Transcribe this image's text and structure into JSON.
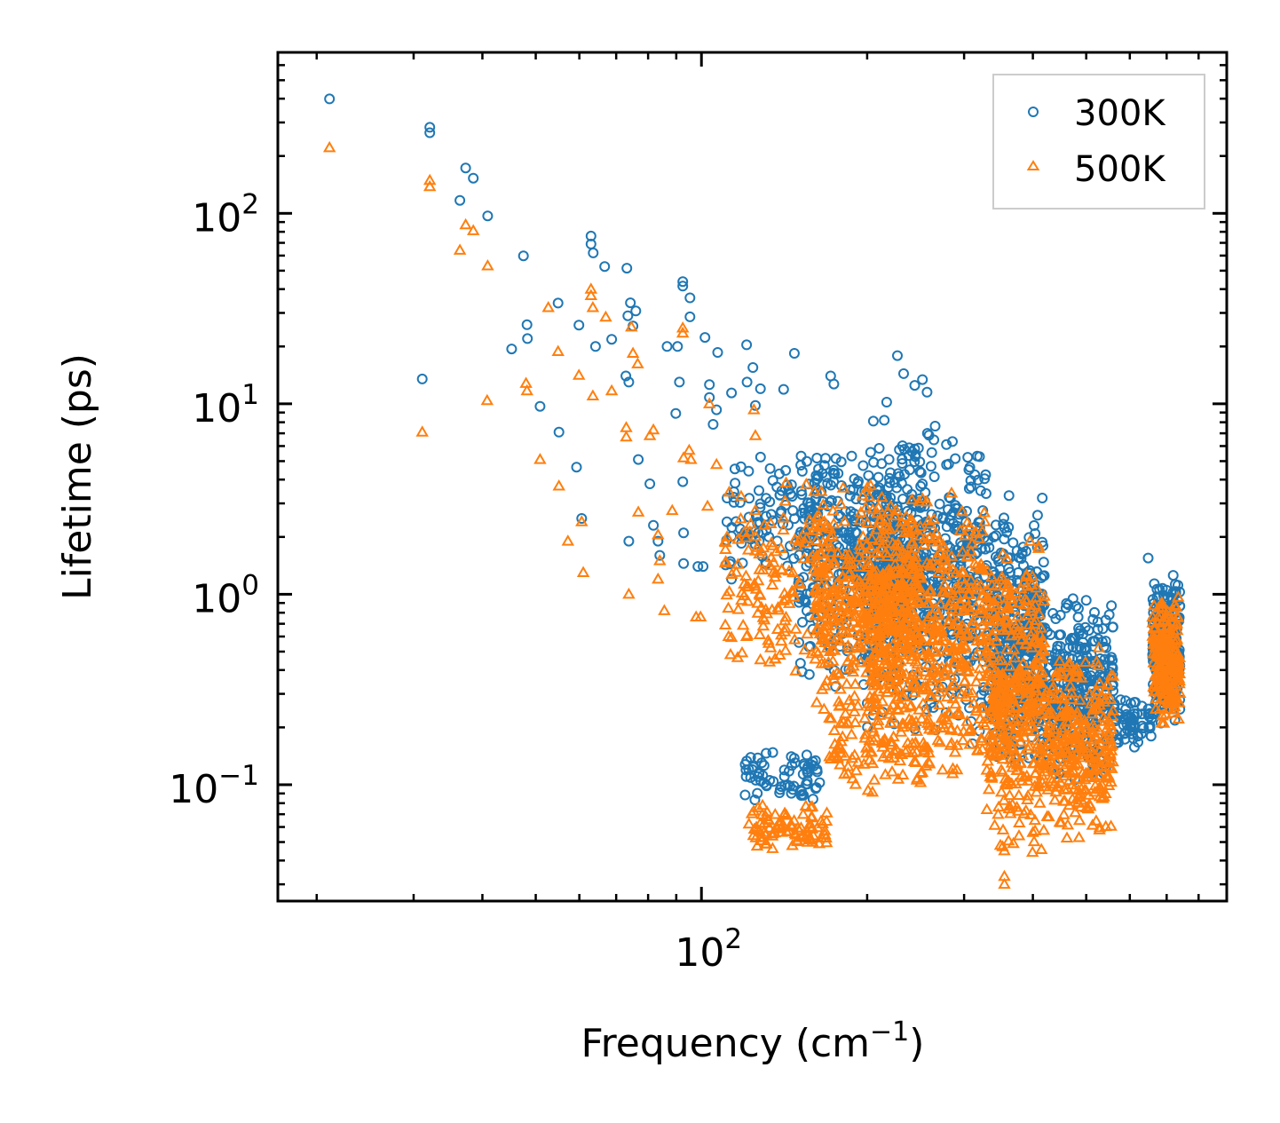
{
  "chart_data": {
    "type": "scatter",
    "title": "",
    "xlabel": "Frequency (cm",
    "xlabel_sup": "−1",
    "xlabel_end": ")",
    "ylabel": "Lifetime (ps)",
    "xscale": "log",
    "yscale": "log",
    "xlim": [
      17,
      900
    ],
    "ylim": [
      0.0245,
      700
    ],
    "grid": false,
    "legend_position": "top-right",
    "x_ticks": [
      {
        "value": 100,
        "base": "10",
        "exp": "2"
      }
    ],
    "y_ticks": [
      {
        "value": 100,
        "base": "10",
        "exp": "2"
      },
      {
        "value": 10,
        "base": "10",
        "exp": "1"
      },
      {
        "value": 1,
        "base": "10",
        "exp": "0"
      },
      {
        "value": 0.1,
        "base": "10",
        "exp": "−1"
      }
    ],
    "series": [
      {
        "name": "300K",
        "color": "#1f77b4",
        "marker": "circle",
        "points": [
          [
            21.1,
            399
          ],
          [
            32.1,
            283
          ],
          [
            32.1,
            265
          ],
          [
            37.3,
            173
          ],
          [
            38.5,
            153
          ],
          [
            36.4,
            117
          ],
          [
            40.9,
            97
          ],
          [
            31.1,
            13.5
          ],
          [
            47.5,
            59.8
          ],
          [
            45.2,
            19.4
          ],
          [
            48.2,
            26
          ],
          [
            48.3,
            22
          ],
          [
            50.9,
            9.7
          ],
          [
            55.1,
            7.1
          ],
          [
            54.9,
            33.8
          ],
          [
            59.3,
            4.65
          ],
          [
            59.9,
            25.9
          ],
          [
            60.6,
            2.5
          ],
          [
            63,
            76
          ],
          [
            63,
            69
          ],
          [
            63.6,
            62
          ],
          [
            64.2,
            20
          ],
          [
            66.7,
            52.6
          ],
          [
            68.7,
            21.8
          ],
          [
            73.2,
            51.5
          ],
          [
            74.3,
            33.9
          ],
          [
            73.5,
            29
          ],
          [
            73.8,
            13
          ],
          [
            72.9,
            14
          ],
          [
            73.8,
            1.9
          ],
          [
            75.1,
            25.6
          ],
          [
            76,
            30.7
          ],
          [
            76.8,
            5.1
          ],
          [
            80.6,
            3.8
          ],
          [
            81.8,
            2.3
          ],
          [
            83.4,
            1.9
          ],
          [
            84,
            1.6
          ],
          [
            86.6,
            20
          ],
          [
            90.5,
            20
          ],
          [
            91.2,
            13
          ],
          [
            89.8,
            8.9
          ],
          [
            92.5,
            43.8
          ],
          [
            92.5,
            41.5
          ],
          [
            95.3,
            36
          ],
          [
            95.3,
            28.6
          ],
          [
            92.5,
            3.9
          ],
          [
            92.8,
            2.1
          ],
          [
            92.8,
            1.45
          ],
          [
            98.5,
            1.4
          ],
          [
            100.7,
            1.4
          ],
          [
            101.5,
            22.3
          ],
          [
            107,
            18.6
          ],
          [
            105,
            7.8
          ],
          [
            103.4,
            10.8
          ],
          [
            106.5,
            9.3
          ],
          [
            103.4,
            12.6
          ],
          [
            111.3,
            3.2
          ],
          [
            113.4,
            11.4
          ],
          [
            113.4,
            1.2
          ],
          [
            120.8,
            20.4
          ],
          [
            124,
            15.5
          ],
          [
            125.3,
            9.8
          ],
          [
            121,
            13
          ],
          [
            128,
            12
          ],
          [
            141,
            11.9
          ],
          [
            147.5,
            18.4
          ],
          [
            171.7,
            14
          ],
          [
            174,
            12.7
          ],
          [
            227,
            17.9
          ],
          [
            233,
            14.4
          ],
          [
            217,
            10.2
          ],
          [
            244,
            12.5
          ],
          [
            252,
            13.4
          ],
          [
            257,
            11.5
          ],
          [
            362,
            3.3
          ],
          [
            416,
            3.2
          ],
          [
            408,
            2.6
          ],
          [
            500,
            0.93
          ],
          [
            648,
            1.55
          ],
          [
            648,
            0.25
          ],
          [
            590,
            0.25
          ],
          [
            620,
            0.18
          ]
        ],
        "dense_regions": [
          [
            120,
            165,
            0.08,
            0.15,
            70
          ],
          [
            150,
            260,
            0.3,
            6,
            400
          ],
          [
            200,
            330,
            0.15,
            9,
            500
          ],
          [
            330,
            420,
            0.1,
            3,
            400
          ],
          [
            420,
            560,
            0.1,
            1,
            300
          ],
          [
            560,
            660,
            0.15,
            0.3,
            60
          ],
          [
            660,
            740,
            0.2,
            1.3,
            220
          ],
          [
            110,
            200,
            1,
            6,
            150
          ]
        ]
      },
      {
        "name": "500K",
        "color": "#ff7f0e",
        "marker": "triangle",
        "points": [
          [
            21.1,
            221
          ],
          [
            32.1,
            149
          ],
          [
            32.1,
            138
          ],
          [
            36.4,
            64
          ],
          [
            37.3,
            87
          ],
          [
            38.5,
            81
          ],
          [
            40.9,
            53
          ],
          [
            31.1,
            7.1
          ],
          [
            40.8,
            10.4
          ],
          [
            48,
            12.8
          ],
          [
            48.2,
            11.7
          ],
          [
            50.9,
            5.1
          ],
          [
            52.7,
            32
          ],
          [
            54.9,
            18.8
          ],
          [
            55.1,
            3.7
          ],
          [
            57.2,
            1.9
          ],
          [
            59.9,
            14.1
          ],
          [
            60.6,
            2.4
          ],
          [
            61,
            1.3
          ],
          [
            63,
            40
          ],
          [
            63,
            37
          ],
          [
            63.5,
            32
          ],
          [
            63.5,
            11
          ],
          [
            67,
            28.5
          ],
          [
            68.7,
            11.7
          ],
          [
            73,
            7.5
          ],
          [
            73,
            6.7
          ],
          [
            73.8,
            1.0
          ],
          [
            75.1,
            18.4
          ],
          [
            76.6,
            16.2
          ],
          [
            76.8,
            2.7
          ],
          [
            74.6,
            25.3
          ],
          [
            80.6,
            6.8
          ],
          [
            81.8,
            7.3
          ],
          [
            83.4,
            2.05
          ],
          [
            84,
            1.5
          ],
          [
            83.4,
            1.2
          ],
          [
            85.6,
            0.82
          ],
          [
            88.5,
            2.75
          ],
          [
            92.5,
            23.5
          ],
          [
            92.5,
            25
          ],
          [
            92.8,
            5.2
          ],
          [
            95,
            5.7
          ],
          [
            95.7,
            5.1
          ],
          [
            97.8,
            0.76
          ],
          [
            99.6,
            0.76
          ],
          [
            102.6,
            2.9
          ],
          [
            103.4,
            10
          ],
          [
            106.5,
            4.8
          ],
          [
            111.3,
            2.0
          ],
          [
            110.5,
            0.69
          ],
          [
            112,
            0.6
          ],
          [
            120.8,
            0.6
          ],
          [
            124.5,
            9.3
          ],
          [
            125.3,
            6.8
          ],
          [
            330,
            0.074
          ],
          [
            355,
            0.045
          ],
          [
            355,
            0.033
          ],
          [
            355,
            0.03
          ]
        ],
        "dense_regions": [
          [
            122,
            170,
            0.045,
            0.08,
            90
          ],
          [
            160,
            250,
            0.2,
            4,
            400
          ],
          [
            200,
            330,
            0.1,
            4,
            500
          ],
          [
            330,
            420,
            0.04,
            2,
            400
          ],
          [
            420,
            560,
            0.05,
            0.6,
            300
          ],
          [
            660,
            740,
            0.2,
            1,
            220
          ],
          [
            110,
            170,
            0.3,
            5,
            150
          ],
          [
            170,
            260,
            0.08,
            0.3,
            100
          ]
        ]
      }
    ]
  }
}
